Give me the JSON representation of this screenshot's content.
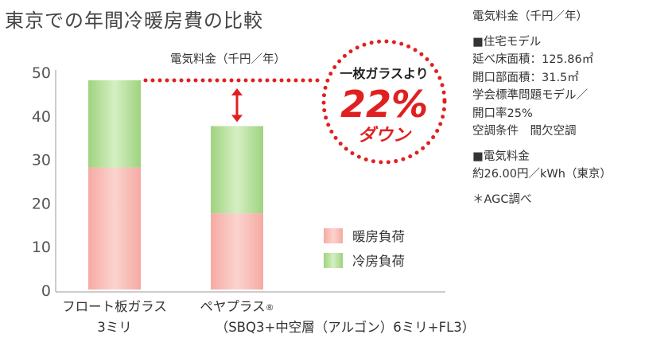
{
  "title": "東京での年間冷暖房費の比較",
  "chart_data": {
    "type": "bar",
    "stacked": true,
    "title": "東京での年間冷暖房費の比較",
    "ylabel": "電気料金（千円／年）",
    "xlabel": "",
    "ylim": [
      0,
      50
    ],
    "yticks": [
      0,
      10,
      20,
      30,
      40,
      50
    ],
    "grid": false,
    "legend_position": "right",
    "categories": [
      {
        "line1": "フロート板ガラス",
        "line2": "3ミリ"
      },
      {
        "line1": "ペヤプラス",
        "mark": "®",
        "line2": "（SBQ3+中空層（アルゴン）6ミリ+FL3）"
      }
    ],
    "series": [
      {
        "name": "暖房負荷",
        "color": "#f8b9b3",
        "values": [
          28,
          17.5
        ]
      },
      {
        "name": "冷房負荷",
        "color": "#a9d98c",
        "values": [
          20,
          20
        ]
      }
    ],
    "totals": [
      48,
      37.5
    ],
    "annotation": {
      "line1": "一枚ガラスより",
      "big": "22%",
      "line2": "ダウン",
      "color": "#e02020"
    }
  },
  "notes": {
    "header": "電気料金（千円／年）",
    "model_title": "■住宅モデル",
    "model_lines": [
      "延べ床面積：125.86㎡",
      "開口部面積：31.5㎡",
      "学会標準問題モデル／",
      "開口率25%",
      "空調条件　間欠空調"
    ],
    "rate_title": "■電気料金",
    "rate_lines": [
      "約26.00円／kWh（東京）"
    ],
    "source": "＊AGC調べ"
  }
}
